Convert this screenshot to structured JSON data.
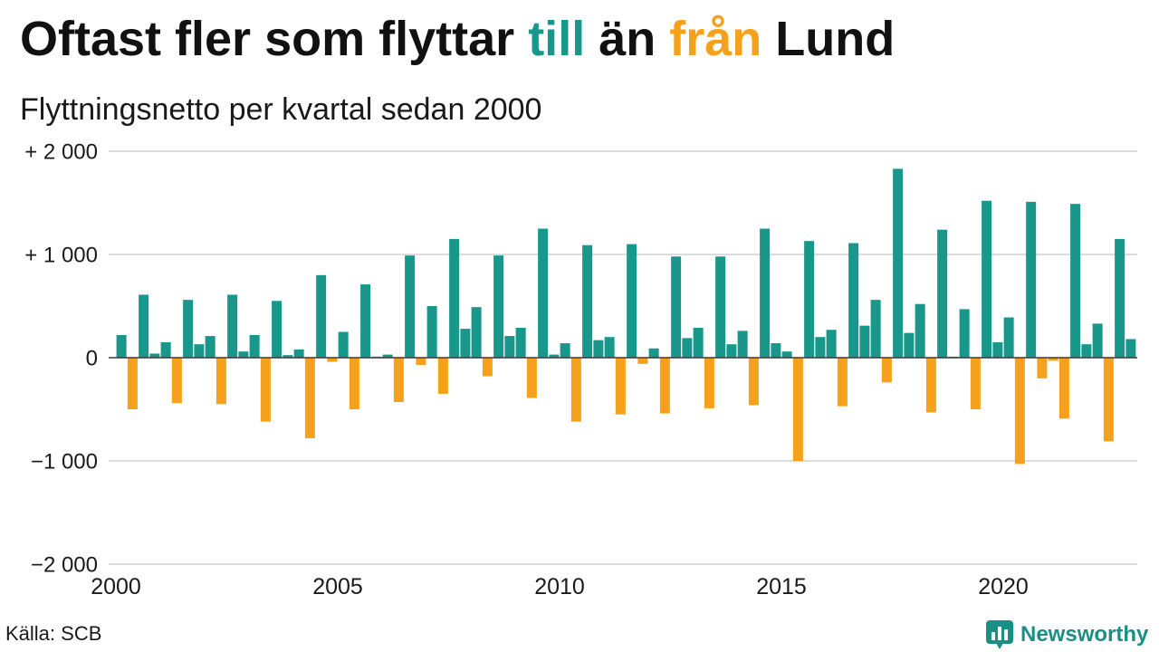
{
  "chart_data": {
    "type": "bar",
    "title": "Oftast fler som flyttar till än från Lund",
    "title_highlights": [
      {
        "text": "till",
        "color": "#18978a"
      },
      {
        "text": "från",
        "color": "#f6a11b"
      }
    ],
    "subtitle": "Flyttningsnetto per kvartal sedan 2000",
    "xlim": [
      2000,
      2023
    ],
    "ylim": [
      -2000,
      2000
    ],
    "grid": true,
    "x_ticks": [
      {
        "value": 2000,
        "label": "2000"
      },
      {
        "value": 2005,
        "label": "2005"
      },
      {
        "value": 2010,
        "label": "2010"
      },
      {
        "value": 2015,
        "label": "2015"
      },
      {
        "value": 2020,
        "label": "2020"
      }
    ],
    "y_ticks": [
      {
        "value": 2000,
        "label": "+ 2 000"
      },
      {
        "value": 1000,
        "label": "+ 1 000"
      },
      {
        "value": 0,
        "label": "0"
      },
      {
        "value": -1000,
        "label": "−1 000"
      },
      {
        "value": -2000,
        "label": "−2 000"
      }
    ],
    "colors": {
      "positive": "#18978a",
      "negative": "#f6a11b",
      "grid": "#dcdcdc",
      "zero_line": "#3a3a3a"
    },
    "x": [
      2000,
      2000.25,
      2000.5,
      2000.75,
      2001,
      2001.25,
      2001.5,
      2001.75,
      2002,
      2002.25,
      2002.5,
      2002.75,
      2003,
      2003.25,
      2003.5,
      2003.75,
      2004,
      2004.25,
      2004.5,
      2004.75,
      2005,
      2005.25,
      2005.5,
      2005.75,
      2006,
      2006.25,
      2006.5,
      2006.75,
      2007,
      2007.25,
      2007.5,
      2007.75,
      2008,
      2008.25,
      2008.5,
      2008.75,
      2009,
      2009.25,
      2009.5,
      2009.75,
      2010,
      2010.25,
      2010.5,
      2010.75,
      2011,
      2011.25,
      2011.5,
      2011.75,
      2012,
      2012.25,
      2012.5,
      2012.75,
      2013,
      2013.25,
      2013.5,
      2013.75,
      2014,
      2014.25,
      2014.5,
      2014.75,
      2015,
      2015.25,
      2015.5,
      2015.75,
      2016,
      2016.25,
      2016.5,
      2016.75,
      2017,
      2017.25,
      2017.5,
      2017.75,
      2018,
      2018.25,
      2018.5,
      2018.75,
      2019,
      2019.25,
      2019.5,
      2019.75,
      2020,
      2020.25,
      2020.5,
      2020.75,
      2021,
      2021.25,
      2021.5,
      2021.75,
      2022,
      2022.25,
      2022.5,
      2022.75
    ],
    "values": [
      220,
      -500,
      610,
      40,
      150,
      -440,
      560,
      130,
      210,
      -450,
      610,
      60,
      220,
      -620,
      550,
      25,
      80,
      -780,
      800,
      -40,
      250,
      -500,
      710,
      10,
      30,
      -430,
      990,
      -70,
      500,
      -350,
      1150,
      280,
      490,
      -180,
      990,
      210,
      290,
      -390,
      1250,
      30,
      140,
      -620,
      1090,
      170,
      200,
      -550,
      1100,
      -60,
      90,
      -540,
      980,
      190,
      290,
      -490,
      980,
      130,
      260,
      -460,
      1250,
      140,
      60,
      -1000,
      1130,
      200,
      270,
      -470,
      1110,
      310,
      560,
      -240,
      1830,
      240,
      520,
      -530,
      1240,
      10,
      470,
      -500,
      1520,
      150,
      390,
      -1030,
      1510,
      -200,
      -30,
      -590,
      1490,
      130,
      330,
      -810,
      1150,
      180
    ]
  },
  "source": "Källa: SCB",
  "brand": {
    "name": "Newsworthy",
    "color": "#1a8f85",
    "icon": "newsworthy-chart-bubble-icon"
  }
}
